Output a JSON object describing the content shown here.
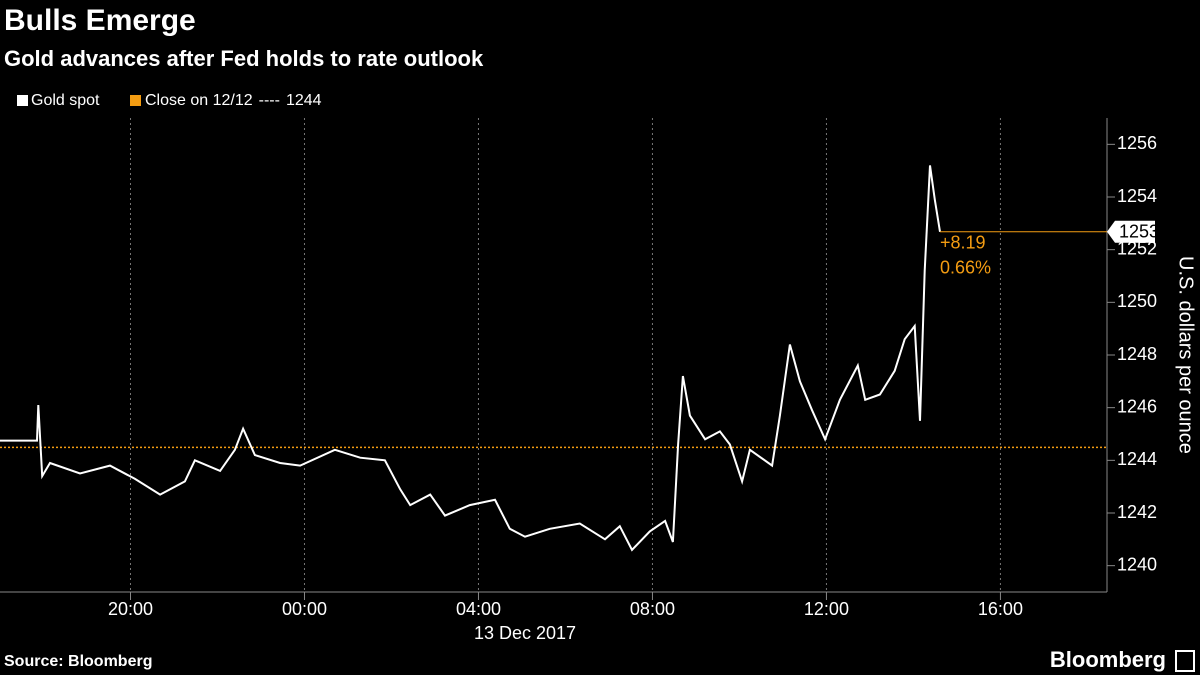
{
  "chart_data": {
    "type": "line",
    "title": "Bulls Emerge",
    "subtitle": "Gold advances after Fed holds to rate outlook",
    "y_label": "U.S. dollars per ounce",
    "date_label": "13 Dec 2017",
    "source": "Source: Bloomberg",
    "brand": "Bloomberg",
    "x": [
      17.0,
      17.85,
      17.88,
      17.97,
      18.15,
      18.84,
      19.53,
      20.1,
      20.68,
      21.25,
      21.48,
      22.06,
      22.4,
      22.59,
      22.86,
      23.44,
      23.9,
      24.7,
      25.28,
      25.85,
      26.2,
      26.43,
      26.89,
      27.23,
      27.8,
      28.38,
      28.72,
      29.07,
      29.64,
      30.33,
      30.91,
      31.25,
      31.53,
      31.94,
      32.29,
      32.47,
      32.59,
      32.7,
      32.86,
      33.21,
      33.55,
      33.78,
      34.06,
      34.24,
      34.75,
      34.93,
      35.16,
      35.39,
      35.67,
      35.97,
      36.31,
      36.72,
      36.89,
      37.23,
      37.57,
      37.8,
      38.03,
      38.15,
      38.26,
      38.38,
      38.49,
      38.61
    ],
    "series": [
      {
        "name": "Gold spot",
        "color": "#ffffff",
        "values": [
          1244.75,
          1244.75,
          1246.1,
          1243.4,
          1243.9,
          1243.5,
          1243.8,
          1243.3,
          1242.7,
          1243.2,
          1244.0,
          1243.6,
          1244.4,
          1245.2,
          1244.2,
          1243.9,
          1243.8,
          1244.4,
          1244.1,
          1244.0,
          1242.9,
          1242.3,
          1242.7,
          1241.9,
          1242.3,
          1242.5,
          1241.4,
          1241.1,
          1241.4,
          1241.6,
          1241.0,
          1241.5,
          1240.6,
          1241.3,
          1241.7,
          1240.9,
          1244.6,
          1247.2,
          1245.7,
          1244.8,
          1245.1,
          1244.6,
          1243.2,
          1244.4,
          1243.8,
          1245.7,
          1248.4,
          1247.0,
          1245.9,
          1244.8,
          1246.3,
          1247.6,
          1246.3,
          1246.5,
          1247.4,
          1248.6,
          1249.1,
          1245.5,
          1251.2,
          1255.2,
          1253.9,
          1252.68
        ]
      },
      {
        "name": "Close on 12/12",
        "color": "#f39c12",
        "value": 1244.49,
        "separator": "----",
        "value_label": "1244"
      }
    ],
    "last_value": 1252.68,
    "last_label": "1253",
    "change": 8.19,
    "change_label": "+8.19",
    "change_pct": 0.66,
    "change_pct_label": "0.66%",
    "xlim": [
      17,
      42.45
    ],
    "xticks": [
      {
        "value": 20,
        "label": "20:00"
      },
      {
        "value": 24,
        "label": "00:00"
      },
      {
        "value": 28,
        "label": "04:00"
      },
      {
        "value": 32,
        "label": "08:00"
      },
      {
        "value": 36,
        "label": "12:00"
      },
      {
        "value": 40,
        "label": "16:00"
      }
    ],
    "ylim": [
      1239,
      1257
    ],
    "yticks": [
      1240,
      1242,
      1244,
      1246,
      1248,
      1250,
      1252,
      1254,
      1256
    ],
    "grid": true
  }
}
